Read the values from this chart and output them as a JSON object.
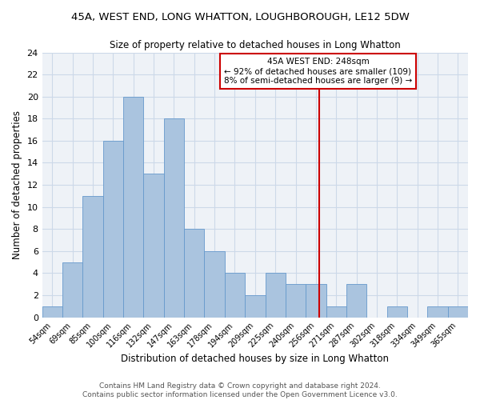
{
  "title1": "45A, WEST END, LONG WHATTON, LOUGHBOROUGH, LE12 5DW",
  "title2": "Size of property relative to detached houses in Long Whatton",
  "xlabel": "Distribution of detached houses by size in Long Whatton",
  "ylabel": "Number of detached properties",
  "footer": "Contains HM Land Registry data © Crown copyright and database right 2024.\nContains public sector information licensed under the Open Government Licence v3.0.",
  "bin_labels": [
    "54sqm",
    "69sqm",
    "85sqm",
    "100sqm",
    "116sqm",
    "132sqm",
    "147sqm",
    "163sqm",
    "178sqm",
    "194sqm",
    "209sqm",
    "225sqm",
    "240sqm",
    "256sqm",
    "271sqm",
    "287sqm",
    "302sqm",
    "318sqm",
    "334sqm",
    "349sqm",
    "365sqm"
  ],
  "bar_values": [
    1,
    5,
    11,
    16,
    20,
    13,
    18,
    8,
    6,
    4,
    2,
    4,
    3,
    3,
    1,
    3,
    0,
    1,
    0,
    1,
    1
  ],
  "bar_color": "#aac4df",
  "bar_edge_color": "#6699cc",
  "ylim": [
    0,
    24
  ],
  "yticks": [
    0,
    2,
    4,
    6,
    8,
    10,
    12,
    14,
    16,
    18,
    20,
    22,
    24
  ],
  "vline_x": 13.17,
  "vline_color": "#cc0000",
  "annotation_text": "45A WEST END: 248sqm\n← 92% of detached houses are smaller (109)\n8% of semi-detached houses are larger (9) →",
  "annotation_box_color": "#cc0000",
  "background_color": "#eef2f7",
  "grid_color": "#ccd9e8"
}
